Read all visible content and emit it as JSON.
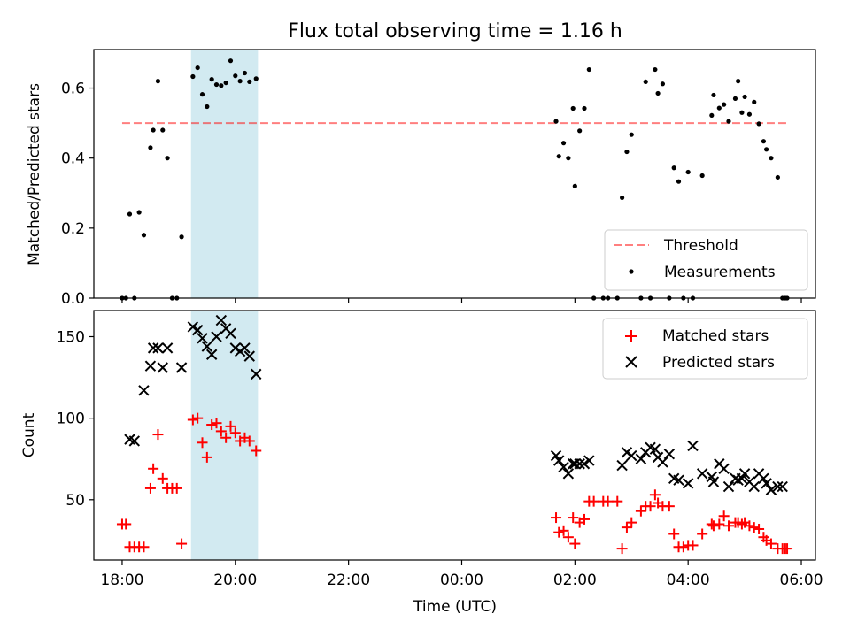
{
  "chart_data": [
    {
      "type": "scatter",
      "title": "Flux total observing time = 1.16 h",
      "ylabel": "Matched/Predicted stars",
      "xlabel": "",
      "xlim": [
        "17:30",
        "06:15"
      ],
      "ylim": [
        0,
        0.71
      ],
      "yticks": [
        0.0,
        0.2,
        0.4,
        0.6
      ],
      "ytick_labels": [
        "0.0",
        "0.2",
        "0.4",
        "0.6"
      ],
      "highlight_span": {
        "start": "19:13",
        "end": "20:24",
        "color": "#add8e6"
      },
      "threshold": {
        "name": "Threshold",
        "value": 0.5,
        "x_start": "18:00",
        "x_end": "05:45",
        "color": "#ff0000"
      },
      "legend": {
        "position": "lower-right",
        "entries": [
          "Threshold",
          "Measurements"
        ]
      },
      "series": [
        {
          "name": "Measurements",
          "marker": "dot",
          "color": "#000000",
          "points": [
            [
              "18:00",
              0.0
            ],
            [
              "18:04",
              0.0
            ],
            [
              "18:08",
              0.24
            ],
            [
              "18:13",
              0.0
            ],
            [
              "18:18",
              0.245
            ],
            [
              "18:23",
              0.18
            ],
            [
              "18:30",
              0.43
            ],
            [
              "18:33",
              0.48
            ],
            [
              "18:38",
              0.62
            ],
            [
              "18:43",
              0.48
            ],
            [
              "18:48",
              0.4
            ],
            [
              "18:53",
              0.0
            ],
            [
              "18:58",
              0.0
            ],
            [
              "19:03",
              0.175
            ],
            [
              "19:15",
              0.633
            ],
            [
              "19:20",
              0.658
            ],
            [
              "19:25",
              0.582
            ],
            [
              "19:30",
              0.547
            ],
            [
              "19:35",
              0.625
            ],
            [
              "19:40",
              0.61
            ],
            [
              "19:45",
              0.607
            ],
            [
              "19:50",
              0.615
            ],
            [
              "19:55",
              0.678
            ],
            [
              "20:00",
              0.635
            ],
            [
              "20:05",
              0.62
            ],
            [
              "20:10",
              0.643
            ],
            [
              "20:15",
              0.618
            ],
            [
              "20:22",
              0.627
            ],
            [
              "01:40",
              0.505
            ],
            [
              "01:43",
              0.405
            ],
            [
              "01:48",
              0.443
            ],
            [
              "01:53",
              0.4
            ],
            [
              "01:58",
              0.542
            ],
            [
              "02:00",
              0.32
            ],
            [
              "02:05",
              0.478
            ],
            [
              "02:10",
              0.542
            ],
            [
              "02:15",
              0.653
            ],
            [
              "02:20",
              0.0
            ],
            [
              "02:30",
              0.0
            ],
            [
              "02:35",
              0.0
            ],
            [
              "02:45",
              0.0
            ],
            [
              "02:50",
              0.287
            ],
            [
              "02:55",
              0.418
            ],
            [
              "03:00",
              0.467
            ],
            [
              "03:10",
              0.0
            ],
            [
              "03:15",
              0.618
            ],
            [
              "03:20",
              0.0
            ],
            [
              "03:25",
              0.653
            ],
            [
              "03:28",
              0.585
            ],
            [
              "03:33",
              0.612
            ],
            [
              "03:40",
              0.0
            ],
            [
              "03:45",
              0.372
            ],
            [
              "03:50",
              0.333
            ],
            [
              "03:55",
              0.0
            ],
            [
              "04:00",
              0.36
            ],
            [
              "04:05",
              0.0
            ],
            [
              "04:15",
              0.35
            ],
            [
              "04:25",
              0.522
            ],
            [
              "04:27",
              0.58
            ],
            [
              "04:33",
              0.543
            ],
            [
              "04:38",
              0.553
            ],
            [
              "04:43",
              0.505
            ],
            [
              "04:50",
              0.57
            ],
            [
              "04:53",
              0.62
            ],
            [
              "04:57",
              0.53
            ],
            [
              "05:00",
              0.575
            ],
            [
              "05:05",
              0.525
            ],
            [
              "05:10",
              0.56
            ],
            [
              "05:15",
              0.498
            ],
            [
              "05:20",
              0.448
            ],
            [
              "05:23",
              0.425
            ],
            [
              "05:28",
              0.4
            ],
            [
              "05:35",
              0.345
            ],
            [
              "05:40",
              0.0
            ],
            [
              "05:43",
              0.0
            ],
            [
              "05:45",
              0.0
            ]
          ]
        }
      ]
    },
    {
      "type": "scatter",
      "title": "",
      "ylabel": "Count",
      "xlabel": "Time (UTC)",
      "xlim": [
        "17:30",
        "06:15"
      ],
      "ylim": [
        13,
        166
      ],
      "yticks": [
        50,
        100,
        150
      ],
      "ytick_labels": [
        "50",
        "100",
        "150"
      ],
      "xticks": [
        "18:00",
        "20:00",
        "22:00",
        "00:00",
        "02:00",
        "04:00",
        "06:00"
      ],
      "xtick_labels": [
        "18:00",
        "20:00",
        "22:00",
        "00:00",
        "02:00",
        "04:00",
        "06:00"
      ],
      "highlight_span": {
        "start": "19:13",
        "end": "20:24",
        "color": "#add8e6"
      },
      "legend": {
        "position": "upper-right",
        "entries": [
          "Matched stars",
          "Predicted stars"
        ]
      },
      "series": [
        {
          "name": "Matched stars",
          "marker": "plus",
          "color": "#ff0000",
          "points": [
            [
              "18:00",
              35
            ],
            [
              "18:04",
              35
            ],
            [
              "18:08",
              21
            ],
            [
              "18:13",
              21
            ],
            [
              "18:18",
              21
            ],
            [
              "18:23",
              21
            ],
            [
              "18:30",
              57
            ],
            [
              "18:33",
              69
            ],
            [
              "18:38",
              90
            ],
            [
              "18:43",
              63
            ],
            [
              "18:48",
              57
            ],
            [
              "18:53",
              57
            ],
            [
              "18:58",
              57
            ],
            [
              "19:03",
              23
            ],
            [
              "19:15",
              99
            ],
            [
              "19:20",
              100
            ],
            [
              "19:25",
              85
            ],
            [
              "19:30",
              76
            ],
            [
              "19:35",
              96
            ],
            [
              "19:40",
              97
            ],
            [
              "19:45",
              92
            ],
            [
              "19:50",
              88
            ],
            [
              "19:55",
              95
            ],
            [
              "20:00",
              91
            ],
            [
              "20:05",
              86
            ],
            [
              "20:10",
              88
            ],
            [
              "20:15",
              86
            ],
            [
              "20:22",
              80
            ],
            [
              "01:40",
              39
            ],
            [
              "01:43",
              30
            ],
            [
              "01:48",
              31
            ],
            [
              "01:53",
              27
            ],
            [
              "01:58",
              39
            ],
            [
              "02:00",
              23
            ],
            [
              "02:05",
              36
            ],
            [
              "02:10",
              38
            ],
            [
              "02:15",
              49
            ],
            [
              "02:20",
              49
            ],
            [
              "02:30",
              49
            ],
            [
              "02:35",
              49
            ],
            [
              "02:45",
              49
            ],
            [
              "02:50",
              20
            ],
            [
              "02:55",
              33
            ],
            [
              "03:00",
              36
            ],
            [
              "03:10",
              43
            ],
            [
              "03:15",
              46
            ],
            [
              "03:20",
              46
            ],
            [
              "03:25",
              53
            ],
            [
              "03:28",
              48
            ],
            [
              "03:33",
              46
            ],
            [
              "03:40",
              46
            ],
            [
              "03:45",
              29
            ],
            [
              "03:50",
              21
            ],
            [
              "03:55",
              21
            ],
            [
              "04:00",
              22
            ],
            [
              "04:05",
              22
            ],
            [
              "04:15",
              29
            ],
            [
              "04:25",
              35
            ],
            [
              "04:27",
              34
            ],
            [
              "04:33",
              35
            ],
            [
              "04:38",
              40
            ],
            [
              "04:43",
              34
            ],
            [
              "04:50",
              36
            ],
            [
              "04:53",
              36
            ],
            [
              "04:57",
              35
            ],
            [
              "05:00",
              36
            ],
            [
              "05:05",
              34
            ],
            [
              "05:10",
              33
            ],
            [
              "05:15",
              32
            ],
            [
              "05:20",
              27
            ],
            [
              "05:23",
              25
            ],
            [
              "05:28",
              23
            ],
            [
              "05:35",
              20
            ],
            [
              "05:40",
              20
            ],
            [
              "05:43",
              20
            ],
            [
              "05:45",
              20
            ]
          ]
        },
        {
          "name": "Predicted stars",
          "marker": "x",
          "color": "#000000",
          "points": [
            [
              "18:08",
              87
            ],
            [
              "18:13",
              86
            ],
            [
              "18:23",
              117
            ],
            [
              "18:30",
              132
            ],
            [
              "18:33",
              143
            ],
            [
              "18:38",
              143
            ],
            [
              "18:43",
              131
            ],
            [
              "18:48",
              143
            ],
            [
              "19:03",
              131
            ],
            [
              "19:15",
              156
            ],
            [
              "19:20",
              154
            ],
            [
              "19:25",
              149
            ],
            [
              "19:30",
              144
            ],
            [
              "19:35",
              139
            ],
            [
              "19:40",
              150
            ],
            [
              "19:45",
              160
            ],
            [
              "19:50",
              155
            ],
            [
              "19:55",
              152
            ],
            [
              "20:00",
              143
            ],
            [
              "20:05",
              141
            ],
            [
              "20:10",
              143
            ],
            [
              "20:15",
              138
            ],
            [
              "20:22",
              127
            ],
            [
              "01:40",
              77
            ],
            [
              "01:43",
              74
            ],
            [
              "01:48",
              70
            ],
            [
              "01:53",
              66
            ],
            [
              "01:58",
              72
            ],
            [
              "02:00",
              72
            ],
            [
              "02:05",
              72
            ],
            [
              "02:10",
              72
            ],
            [
              "02:15",
              74
            ],
            [
              "02:50",
              71
            ],
            [
              "02:55",
              79
            ],
            [
              "03:00",
              77
            ],
            [
              "03:10",
              75
            ],
            [
              "03:15",
              79
            ],
            [
              "03:20",
              82
            ],
            [
              "03:25",
              81
            ],
            [
              "03:28",
              76
            ],
            [
              "03:33",
              73
            ],
            [
              "03:40",
              78
            ],
            [
              "03:45",
              63
            ],
            [
              "03:50",
              62
            ],
            [
              "04:00",
              60
            ],
            [
              "04:05",
              83
            ],
            [
              "04:15",
              66
            ],
            [
              "04:25",
              64
            ],
            [
              "04:27",
              61
            ],
            [
              "04:33",
              72
            ],
            [
              "04:38",
              69
            ],
            [
              "04:43",
              58
            ],
            [
              "04:50",
              63
            ],
            [
              "04:53",
              62
            ],
            [
              "04:57",
              63
            ],
            [
              "05:00",
              66
            ],
            [
              "05:05",
              61
            ],
            [
              "05:10",
              58
            ],
            [
              "05:15",
              66
            ],
            [
              "05:20",
              63
            ],
            [
              "05:23",
              60
            ],
            [
              "05:28",
              56
            ],
            [
              "05:35",
              58
            ],
            [
              "05:40",
              58
            ]
          ]
        }
      ]
    }
  ]
}
